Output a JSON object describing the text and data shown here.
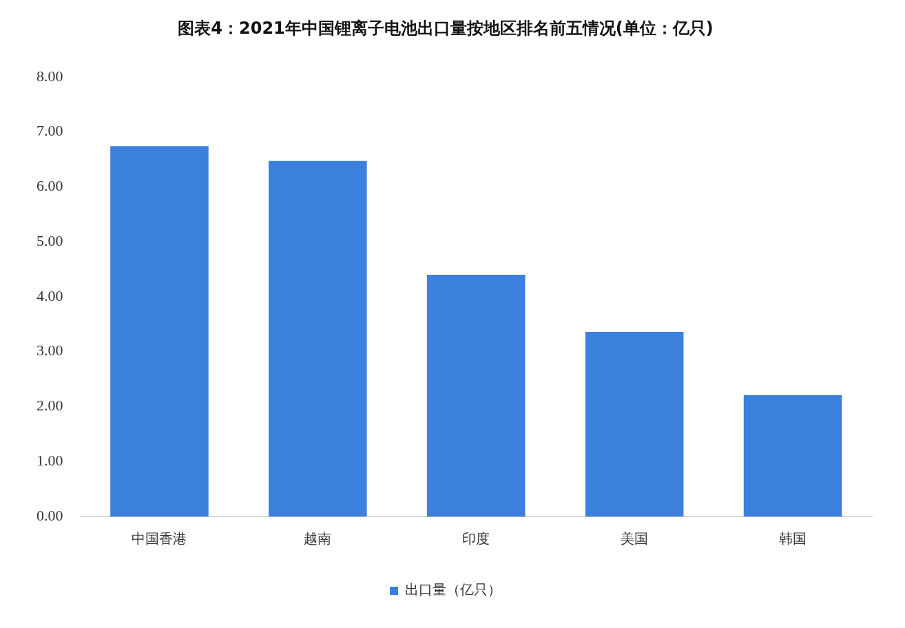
{
  "chart_data": {
    "type": "bar",
    "title": "图表4：2021年中国锂离子电池出口量按地区排名前五情况(单位：亿只)",
    "categories": [
      "中国香港",
      "越南",
      "印度",
      "美国",
      "韩国"
    ],
    "series": [
      {
        "name": "出口量（亿只）",
        "color": "#3a80dc",
        "values": [
          6.74,
          6.47,
          4.4,
          3.36,
          2.21
        ]
      }
    ],
    "ylim": [
      0,
      8
    ],
    "yticks": [
      {
        "value": 0,
        "label": "0.00"
      },
      {
        "value": 1,
        "label": "1.00"
      },
      {
        "value": 2,
        "label": "2.00"
      },
      {
        "value": 3,
        "label": "3.00"
      },
      {
        "value": 4,
        "label": "4.00"
      },
      {
        "value": 5,
        "label": "5.00"
      },
      {
        "value": 6,
        "label": "6.00"
      },
      {
        "value": 7,
        "label": "7.00"
      },
      {
        "value": 8,
        "label": "8.00"
      }
    ],
    "grid": false,
    "legend": "bottom"
  }
}
